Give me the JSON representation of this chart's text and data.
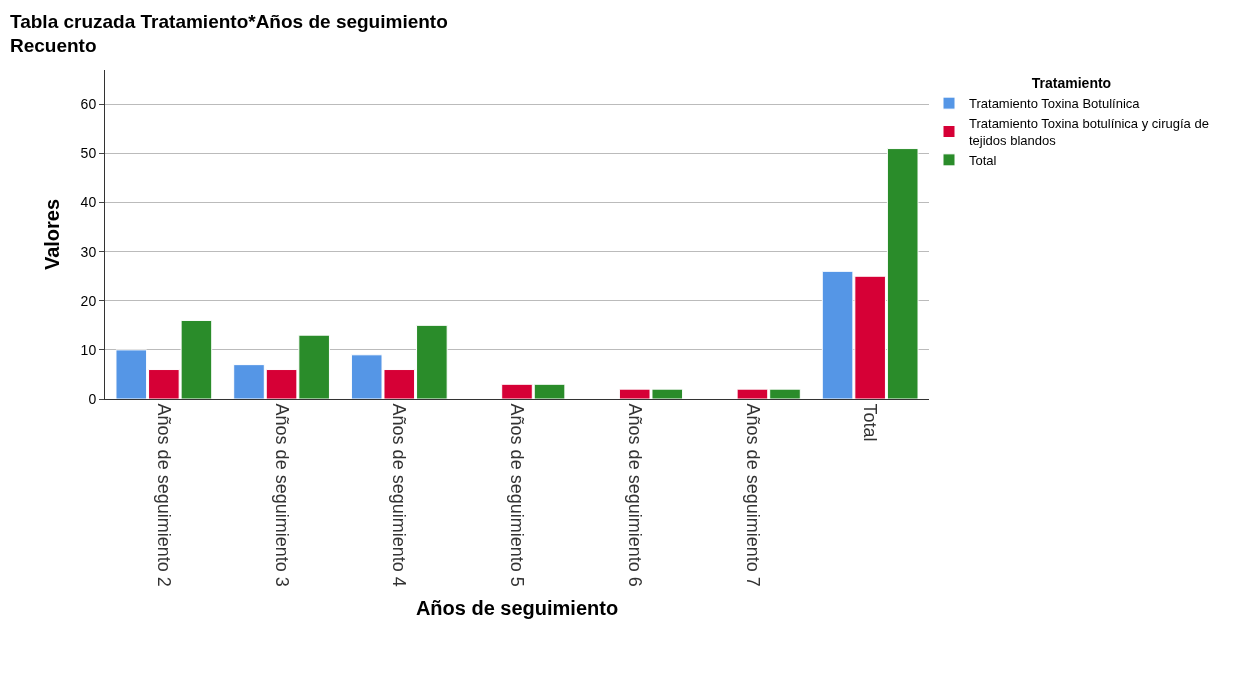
{
  "chart_data": {
    "type": "bar",
    "title": "Tabla cruzada Tratamiento*Años de seguimiento",
    "subtitle": "Recuento",
    "xlabel": "Años de seguimiento",
    "ylabel": "Valores",
    "legend_title": "Tratamiento",
    "categories": [
      "Años de seguimiento 2",
      "Años de seguimiento 3",
      "Años de seguimiento 4",
      "Años de seguimiento 5",
      "Años de seguimiento 6",
      "Años de seguimiento 7",
      "Total"
    ],
    "series": [
      {
        "name": "Tratamiento Toxina Botulínica",
        "color": "#5596e6",
        "values": [
          10,
          7,
          9,
          null,
          null,
          null,
          26
        ]
      },
      {
        "name": "Tratamiento Toxina botulínica y cirugía de tejidos blandos",
        "color": "#d60036",
        "values": [
          6,
          6,
          6,
          3,
          2,
          2,
          25
        ]
      },
      {
        "name": "Total",
        "color": "#2a8c2a",
        "values": [
          16,
          13,
          15,
          3,
          2,
          2,
          51
        ]
      }
    ],
    "ylim": [
      0,
      67
    ],
    "yticks": [
      0,
      10,
      20,
      30,
      40,
      50,
      60
    ],
    "grid": "y",
    "legend": "top right"
  }
}
